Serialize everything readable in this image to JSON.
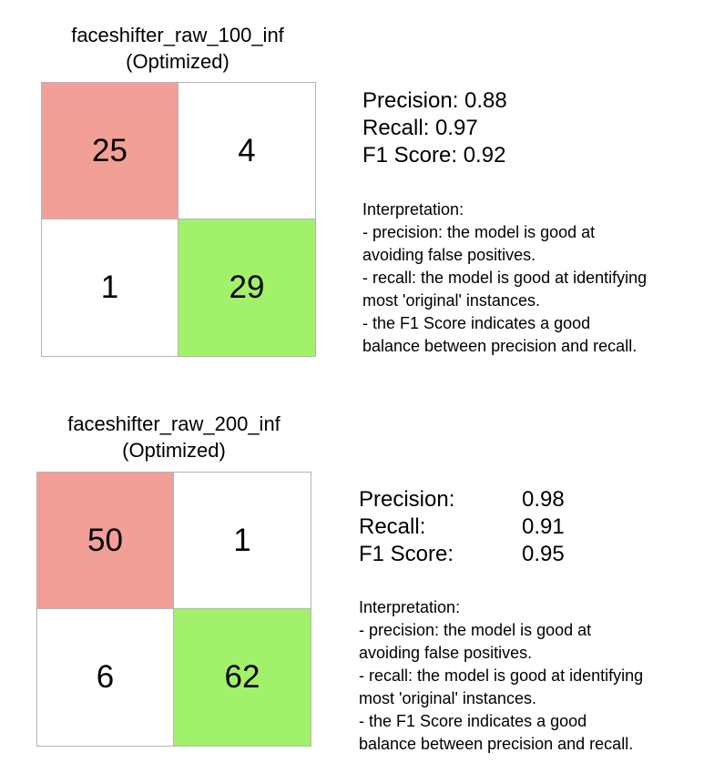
{
  "colors": {
    "true_positive": "#f2a097",
    "true_negative": "#a2f16a",
    "neutral": "#ffffff",
    "border": "#b5b5b5"
  },
  "chart_data": [
    {
      "type": "heatmap",
      "title": "faceshifter_raw_100_inf",
      "subtitle": "(Optimized)",
      "matrix": [
        [
          25,
          4
        ],
        [
          1,
          29
        ]
      ],
      "metrics": [
        {
          "text": "Precision: 0.88"
        },
        {
          "text": "Recall: 0.97"
        },
        {
          "text": "F1 Score: 0.92"
        }
      ],
      "interpretation": [
        "Interpretation:",
        "- precision: the model is good at",
        "avoiding false positives.",
        "- recall: the model is good at identifying",
        "most 'original' instances.",
        "- the F1 Score indicates a good",
        "balance between precision and recall."
      ]
    },
    {
      "type": "heatmap",
      "title": "faceshifter_raw_200_inf",
      "subtitle": "(Optimized)",
      "matrix": [
        [
          50,
          1
        ],
        [
          6,
          62
        ]
      ],
      "metrics": [
        {
          "label": "Precision:",
          "value": "0.98"
        },
        {
          "label": "Recall:",
          "value": "0.91"
        },
        {
          "label": "F1 Score:",
          "value": "0.95"
        }
      ],
      "interpretation": [
        "Interpretation:",
        "- precision: the model is good at",
        "avoiding false positives.",
        "- recall: the model is good at identifying",
        "most 'original' instances.",
        "- the F1 Score indicates a good",
        "balance between precision and recall."
      ]
    }
  ]
}
